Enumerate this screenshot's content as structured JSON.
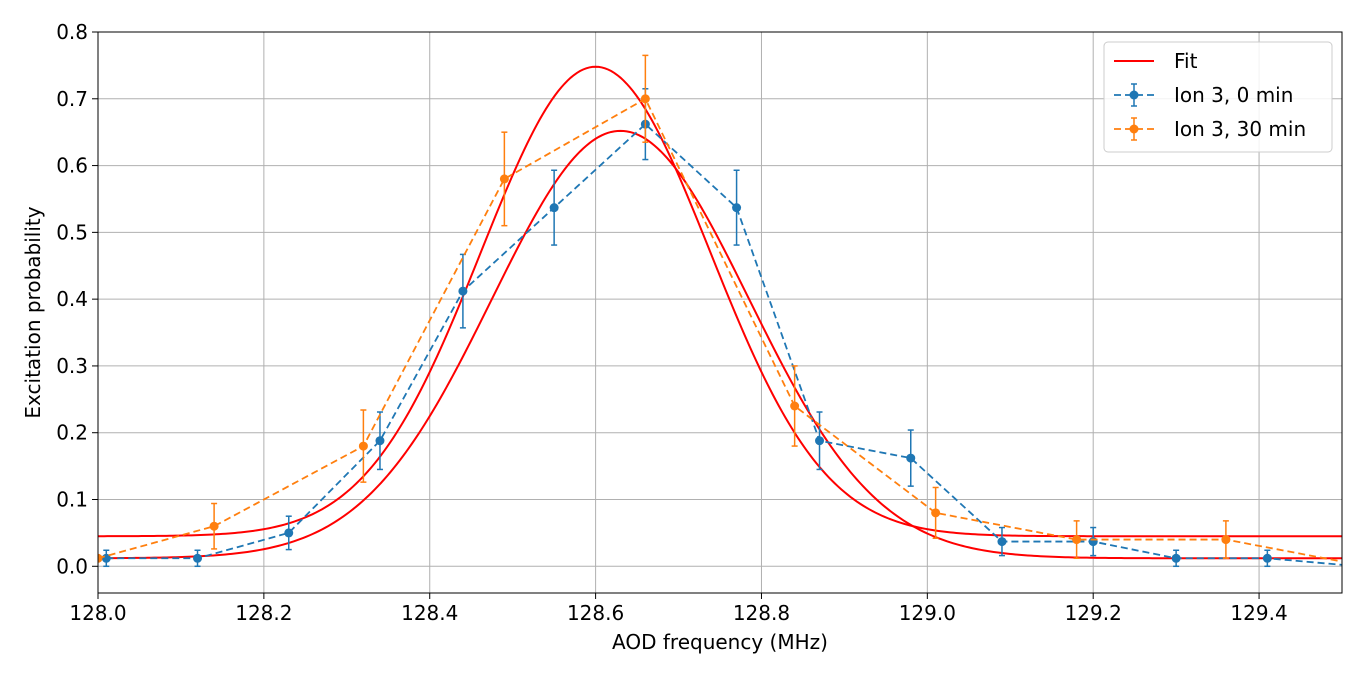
{
  "chart_data": {
    "type": "line",
    "title": "",
    "xlabel": "AOD frequency (MHz)",
    "ylabel": "Excitation probability",
    "xlim": [
      128.0,
      129.5
    ],
    "ylim": [
      -0.04,
      0.8
    ],
    "xticks": [
      128.0,
      128.2,
      128.4,
      128.6,
      128.8,
      129.0,
      129.2,
      129.4
    ],
    "xtick_labels": [
      "128.0",
      "128.2",
      "128.4",
      "128.6",
      "128.8",
      "129.0",
      "129.2",
      "129.4"
    ],
    "yticks": [
      0.0,
      0.1,
      0.2,
      0.3,
      0.4,
      0.5,
      0.6,
      0.7,
      0.8
    ],
    "ytick_labels": [
      "0.0",
      "0.1",
      "0.2",
      "0.3",
      "0.4",
      "0.5",
      "0.6",
      "0.7",
      "0.8"
    ],
    "grid": true,
    "legend_position": "top-right",
    "series": [
      {
        "name": "Ion 3, 0 min",
        "color": "#1f77b4",
        "style": "dashed-with-markers-and-errorbars",
        "x": [
          128.01,
          128.12,
          128.23,
          128.34,
          128.44,
          128.55,
          128.66,
          128.77,
          128.87,
          128.98,
          129.09,
          129.2,
          129.3,
          129.41,
          129.52
        ],
        "y": [
          0.012,
          0.012,
          0.05,
          0.188,
          0.412,
          0.537,
          0.662,
          0.537,
          0.188,
          0.162,
          0.037,
          0.037,
          0.012,
          0.012,
          0.0
        ],
        "err": [
          0.012,
          0.012,
          0.025,
          0.043,
          0.055,
          0.056,
          0.053,
          0.056,
          0.043,
          0.042,
          0.021,
          0.021,
          0.012,
          0.012,
          0.0
        ]
      },
      {
        "name": "Ion 3, 30 min",
        "color": "#ff7f0e",
        "style": "dashed-with-markers-and-errorbars",
        "x": [
          128.0,
          128.14,
          128.32,
          128.49,
          128.66,
          128.84,
          129.01,
          129.18,
          129.36,
          129.53
        ],
        "y": [
          0.012,
          0.06,
          0.18,
          0.58,
          0.7,
          0.24,
          0.08,
          0.04,
          0.04,
          0.0
        ],
        "err": [
          0.0,
          0.034,
          0.054,
          0.07,
          0.065,
          0.06,
          0.038,
          0.028,
          0.028,
          0.0
        ]
      },
      {
        "name": "Fit",
        "color": "#ff0000",
        "style": "solid",
        "model": "gaussian",
        "parameters": {
          "center": 128.6,
          "amplitude": 0.703,
          "sigma": 0.138,
          "offset": 0.045
        },
        "x": [
          128.0,
          128.2,
          128.4,
          128.5,
          128.6,
          128.7,
          128.8,
          129.0,
          129.2,
          129.5
        ],
        "y": [
          0.045,
          0.07,
          0.305,
          0.56,
          0.748,
          0.56,
          0.305,
          0.07,
          0.045,
          0.045
        ]
      },
      {
        "name": "",
        "color": "#ff0000",
        "style": "solid",
        "model": "gaussian",
        "parameters": {
          "center": 128.63,
          "amplitude": 0.64,
          "sigma": 0.155,
          "offset": 0.012
        },
        "x": [
          128.0,
          128.2,
          128.4,
          128.5,
          128.63,
          128.8,
          129.0,
          129.2,
          129.5
        ],
        "y": [
          0.012,
          0.055,
          0.3,
          0.5,
          0.652,
          0.4,
          0.07,
          0.015,
          0.012
        ]
      }
    ],
    "legend": [
      "Fit",
      "Ion 3, 0 min",
      "Ion 3, 30 min"
    ]
  }
}
